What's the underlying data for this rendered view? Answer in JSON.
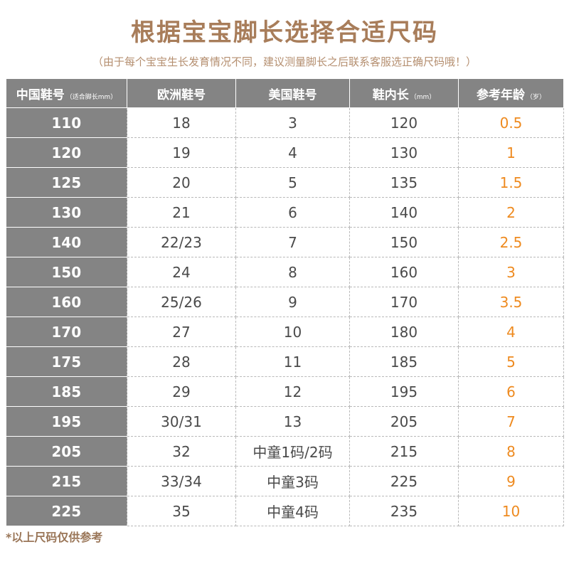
{
  "title": "根据宝宝脚长选择合适尺码",
  "subtitle": "（由于每个宝宝生长发育情况不同，建议测量脚长之后联系客服选正确尺码哦！）",
  "table": {
    "headers": [
      {
        "label": "中国鞋号",
        "note": "（适合脚长mm）"
      },
      {
        "label": "欧洲鞋号",
        "note": ""
      },
      {
        "label": "美国鞋号",
        "note": ""
      },
      {
        "label": "鞋内长",
        "note": "（mm）"
      },
      {
        "label": "参考年龄",
        "note": "（岁）"
      }
    ],
    "rows": [
      [
        "110",
        "18",
        "3",
        "120",
        "0.5"
      ],
      [
        "120",
        "19",
        "4",
        "130",
        "1"
      ],
      [
        "125",
        "20",
        "5",
        "135",
        "1.5"
      ],
      [
        "130",
        "21",
        "6",
        "140",
        "2"
      ],
      [
        "140",
        "22/23",
        "7",
        "150",
        "2.5"
      ],
      [
        "150",
        "24",
        "8",
        "160",
        "3"
      ],
      [
        "160",
        "25/26",
        "9",
        "170",
        "3.5"
      ],
      [
        "170",
        "27",
        "10",
        "180",
        "4"
      ],
      [
        "175",
        "28",
        "11",
        "185",
        "5"
      ],
      [
        "185",
        "29",
        "12",
        "195",
        "6"
      ],
      [
        "195",
        "30/31",
        "13",
        "205",
        "7"
      ],
      [
        "205",
        "32",
        "中童1码/2码",
        "215",
        "8"
      ],
      [
        "215",
        "33/34",
        "中童3码",
        "225",
        "9"
      ],
      [
        "225",
        "35",
        "中童4码",
        "235",
        "10"
      ]
    ]
  },
  "footnote": "*以上尺码仅供参考",
  "colors": {
    "title": "#a87d5a",
    "header_bg": "#848484",
    "age_text": "#ee8a1f"
  }
}
